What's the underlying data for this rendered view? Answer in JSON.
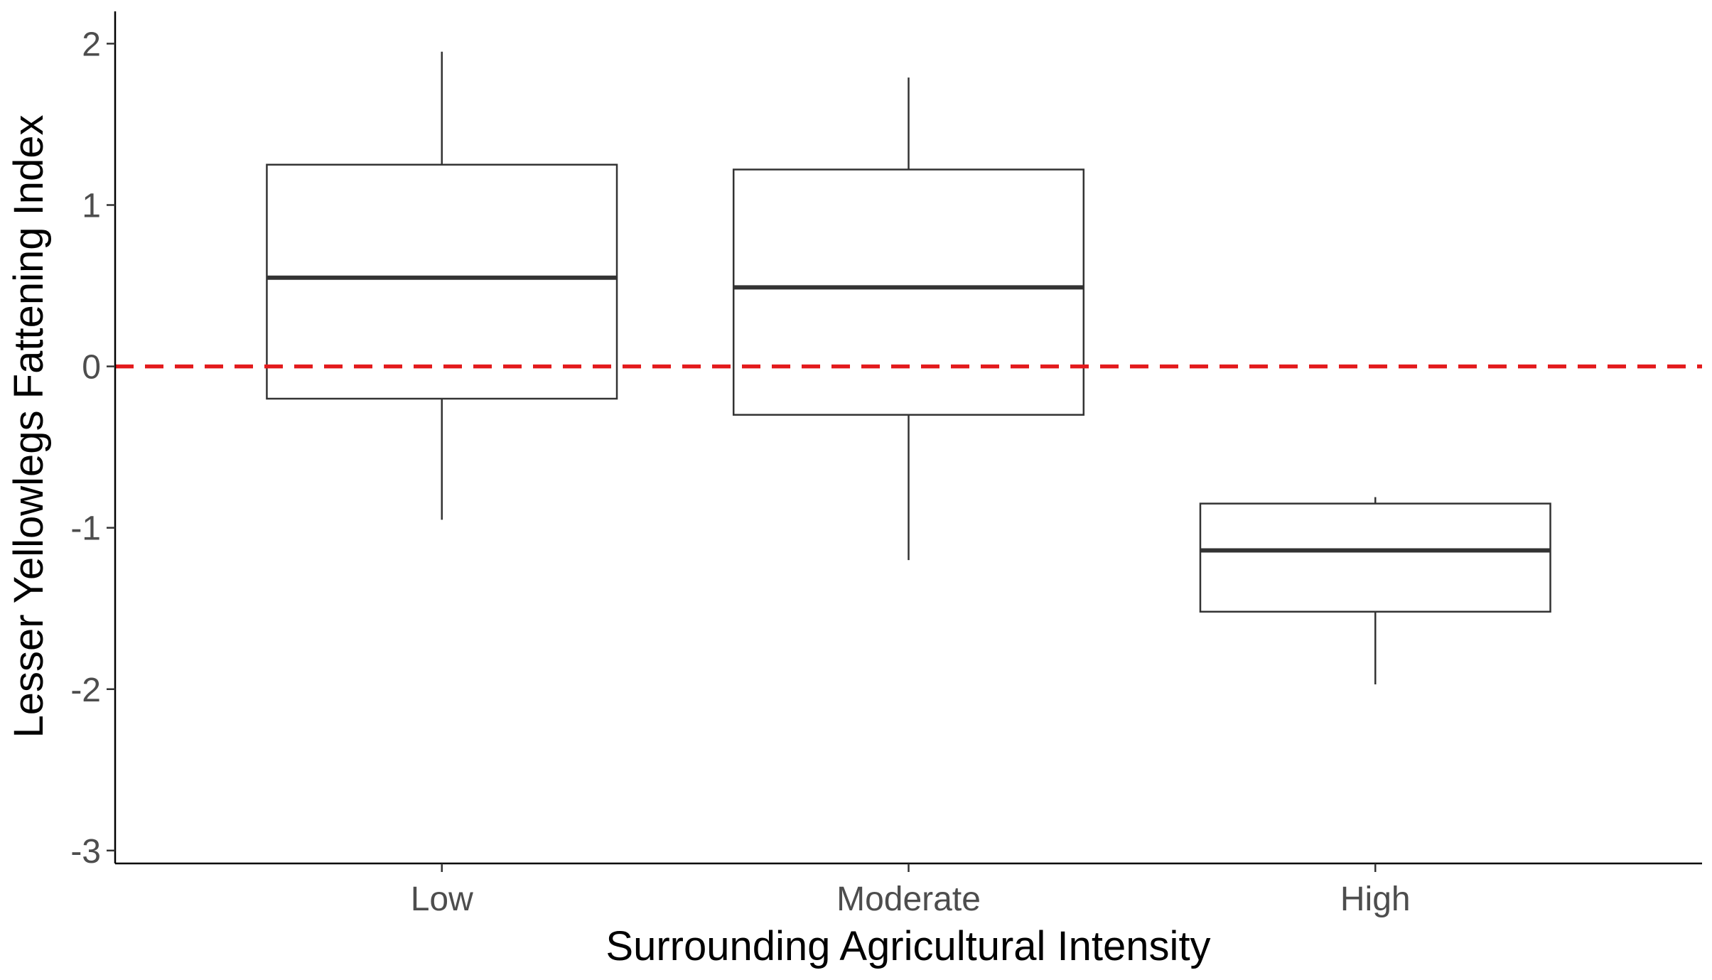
{
  "chart_data": {
    "type": "boxplot",
    "title": "",
    "xlabel": "Surrounding Agricultural Intensity",
    "ylabel": "Lesser Yellowlegs Fattening Index",
    "categories": [
      "Low",
      "Moderate",
      "High"
    ],
    "boxes": [
      {
        "category": "Low",
        "whisker_low": -0.95,
        "q1": -0.2,
        "median": 0.55,
        "q3": 1.25,
        "whisker_high": 1.95
      },
      {
        "category": "Moderate",
        "whisker_low": -1.2,
        "q1": -0.3,
        "median": 0.49,
        "q3": 1.22,
        "whisker_high": 1.79
      },
      {
        "category": "High",
        "whisker_low": -1.97,
        "q1": -1.52,
        "median": -1.14,
        "q3": -0.85,
        "whisker_high": -0.81
      }
    ],
    "ylim": [
      -3.08,
      2.2
    ],
    "yticks": [
      -3,
      -2,
      -1,
      0,
      1,
      2
    ],
    "ytick_labels": [
      "-3",
      "-2",
      "-1",
      "0",
      "1",
      "2"
    ],
    "reference_line": {
      "y": 0,
      "style": "dashed",
      "color": "#e31a1c"
    },
    "grid": false,
    "legend": "none",
    "colors": {
      "box_stroke": "#333333",
      "box_fill": "#ffffff",
      "axis": "#000000",
      "tick_text": "#4d4d4d",
      "reference_line": "#e31a1c"
    }
  }
}
